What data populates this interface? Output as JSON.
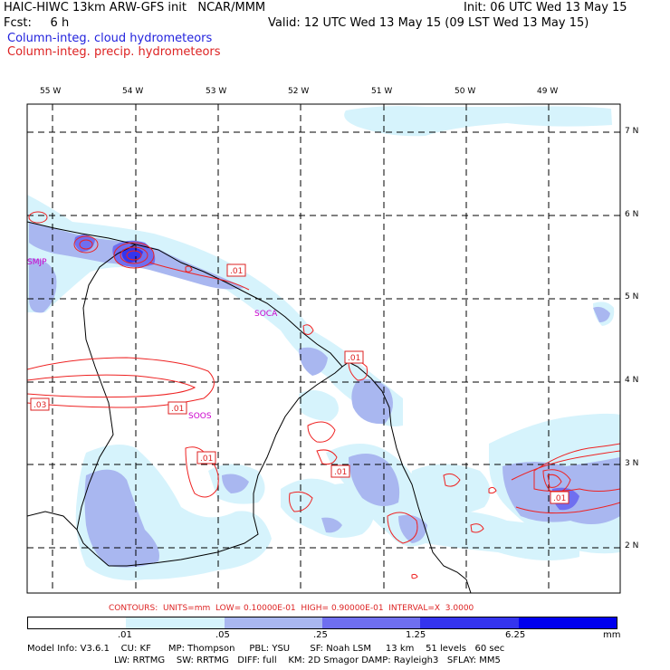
{
  "header": {
    "line1_left": "HAIC-HIWC 13km ARW-GFS init   NCAR/MMM",
    "line1_right": "Init: 06 UTC Wed 13 May 15",
    "line2_left": "Fcst:     6 h",
    "line2_right": "Valid: 12 UTC Wed 13 May 15 (09 LST Wed 13 May 15)",
    "legend_cloud": "Column-integ. cloud hydrometeors",
    "legend_precip": "Column-integ. precip. hydrometeors"
  },
  "colors": {
    "cloud_text": "#2222dd",
    "precip_text": "#dd2222",
    "fill_levels": [
      "#ffffff",
      "#d6f3fc",
      "#a9b7f0",
      "#6f6ff0",
      "#3434ee",
      "#0000ee"
    ],
    "contour": "#ee2222",
    "station": "#cc00cc"
  },
  "map": {
    "lon_labels": [
      "55 W",
      "54 W",
      "53 W",
      "52 W",
      "51 W",
      "50 W",
      "49 W"
    ],
    "lat_labels": [
      "7 N",
      "6 N",
      "5 N",
      "4 N",
      "3 N",
      "2 N"
    ],
    "stations": [
      "SMJP",
      "SOCA",
      "SOOS"
    ],
    "contour_labels": [
      ".01",
      ".01",
      ".03",
      ".01",
      ".01",
      ".01",
      ".01"
    ]
  },
  "contours_info": "CONTOURS:  UNITS=mm  LOW= 0.10000E-01  HIGH= 0.90000E-01  INTERVAL=X  3.0000",
  "colorbar": {
    "ticks": [
      ".01",
      ".05",
      ".25",
      "1.25",
      "6.25"
    ],
    "unit": "mm"
  },
  "footer": {
    "line1": "Model Info: V3.6.1    CU: KF      MP: Thompson     PBL: YSU       SF: Noah LSM     13 km    51 levels   60 sec",
    "line2": "LW: RRTMG    SW: RRTMG   DIFF: full    KM: 2D Smagor DAMP: Rayleigh3   SFLAY: MM5"
  }
}
